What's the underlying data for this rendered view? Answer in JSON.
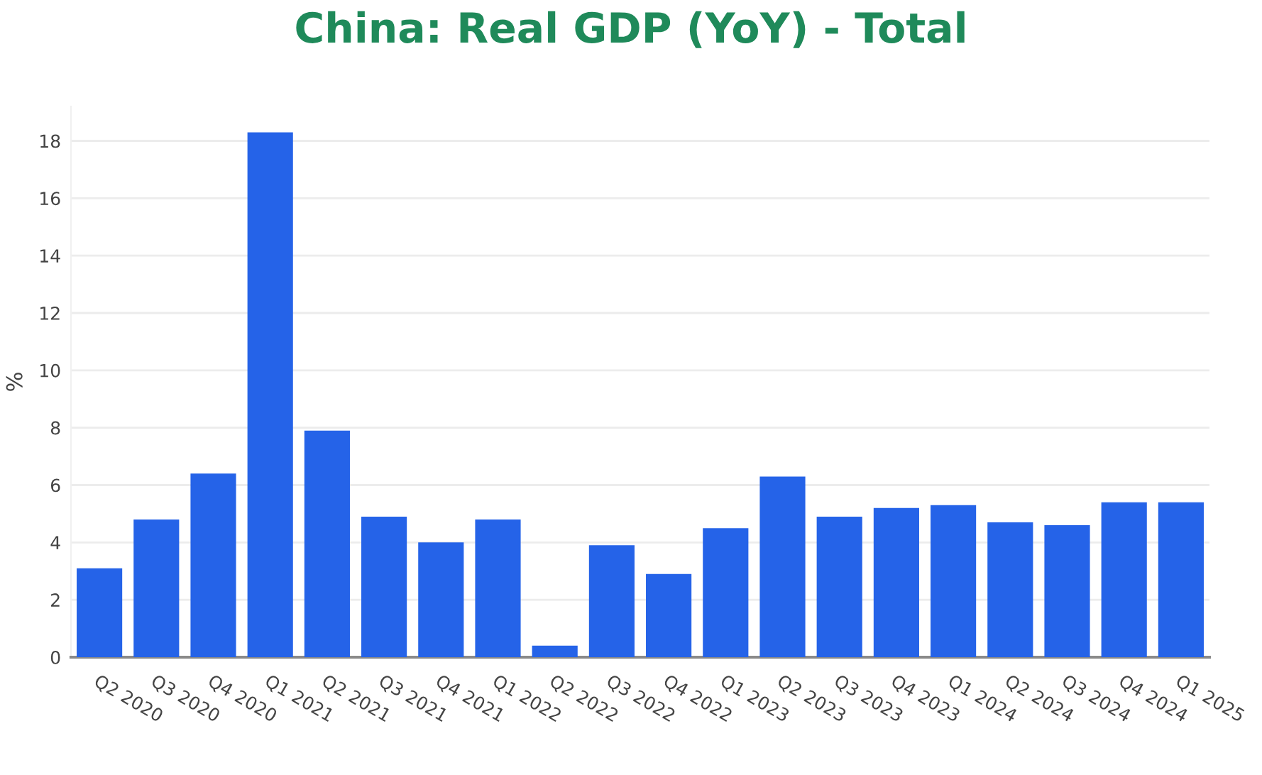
{
  "chart_data": {
    "type": "bar",
    "title": "China: Real GDP (YoY) - Total",
    "ylabel": "%",
    "categories": [
      "Q2 2020",
      "Q3 2020",
      "Q4 2020",
      "Q1 2021",
      "Q2 2021",
      "Q3 2021",
      "Q4 2021",
      "Q1 2022",
      "Q2 2022",
      "Q3 2022",
      "Q4 2022",
      "Q1 2023",
      "Q2 2023",
      "Q3 2023",
      "Q4 2023",
      "Q1 2024",
      "Q2 2024",
      "Q3 2024",
      "Q4 2024",
      "Q1 2025"
    ],
    "values": [
      3.1,
      4.8,
      6.4,
      18.3,
      7.9,
      4.9,
      4.0,
      4.8,
      0.4,
      3.9,
      2.9,
      4.5,
      6.3,
      4.9,
      5.2,
      5.3,
      4.7,
      4.6,
      5.4,
      5.4
    ],
    "color": "#2563e8",
    "ylim": [
      0,
      19.2
    ],
    "yticks": [
      0,
      2,
      4,
      6,
      8,
      10,
      12,
      14,
      16,
      18
    ],
    "grid": "y"
  }
}
